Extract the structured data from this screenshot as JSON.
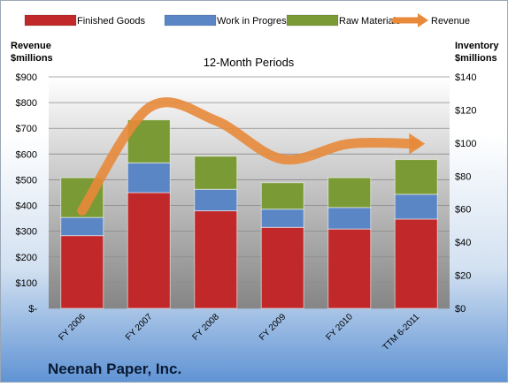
{
  "colors": {
    "finished_goods": "#c0282a",
    "work_in_progress": "#5b86c6",
    "raw_materials": "#7a9a35",
    "revenue": "#e88a3a"
  },
  "chart_data": {
    "type": "bar",
    "stacked": true,
    "title": "12-Month Periods",
    "company": "Neenah Paper, Inc.",
    "left_axis_title": [
      "Revenue",
      "$millions"
    ],
    "right_axis_title": [
      "Inventory",
      "$millions"
    ],
    "categories": [
      "FY 2006",
      "FY 2007",
      "FY 2008",
      "FY 2009",
      "FY 2010",
      "TTM 6-2011"
    ],
    "left_axis": {
      "range": [
        0,
        900
      ],
      "ticks": [
        "$-",
        "$100",
        "$200",
        "$300",
        "$400",
        "$500",
        "$600",
        "$700",
        "$800",
        "$900"
      ]
    },
    "right_axis": {
      "range": [
        0,
        140
      ],
      "ticks": [
        "$0",
        "$20",
        "$40",
        "$60",
        "$80",
        "$100",
        "$120",
        "$140"
      ]
    },
    "legend_position": "top",
    "series": [
      {
        "name": "Finished Goods",
        "axis": "right",
        "values": [
          44,
          70,
          59,
          49,
          48,
          54
        ]
      },
      {
        "name": "Work in Progress",
        "axis": "right",
        "values": [
          11,
          18,
          13,
          11,
          13,
          15
        ]
      },
      {
        "name": "Raw Materials",
        "axis": "right",
        "values": [
          24,
          26,
          20,
          16,
          18,
          21
        ]
      }
    ],
    "line_series": {
      "name": "Revenue",
      "axis": "left",
      "values": [
        380,
        780,
        730,
        580,
        640,
        640
      ]
    }
  }
}
